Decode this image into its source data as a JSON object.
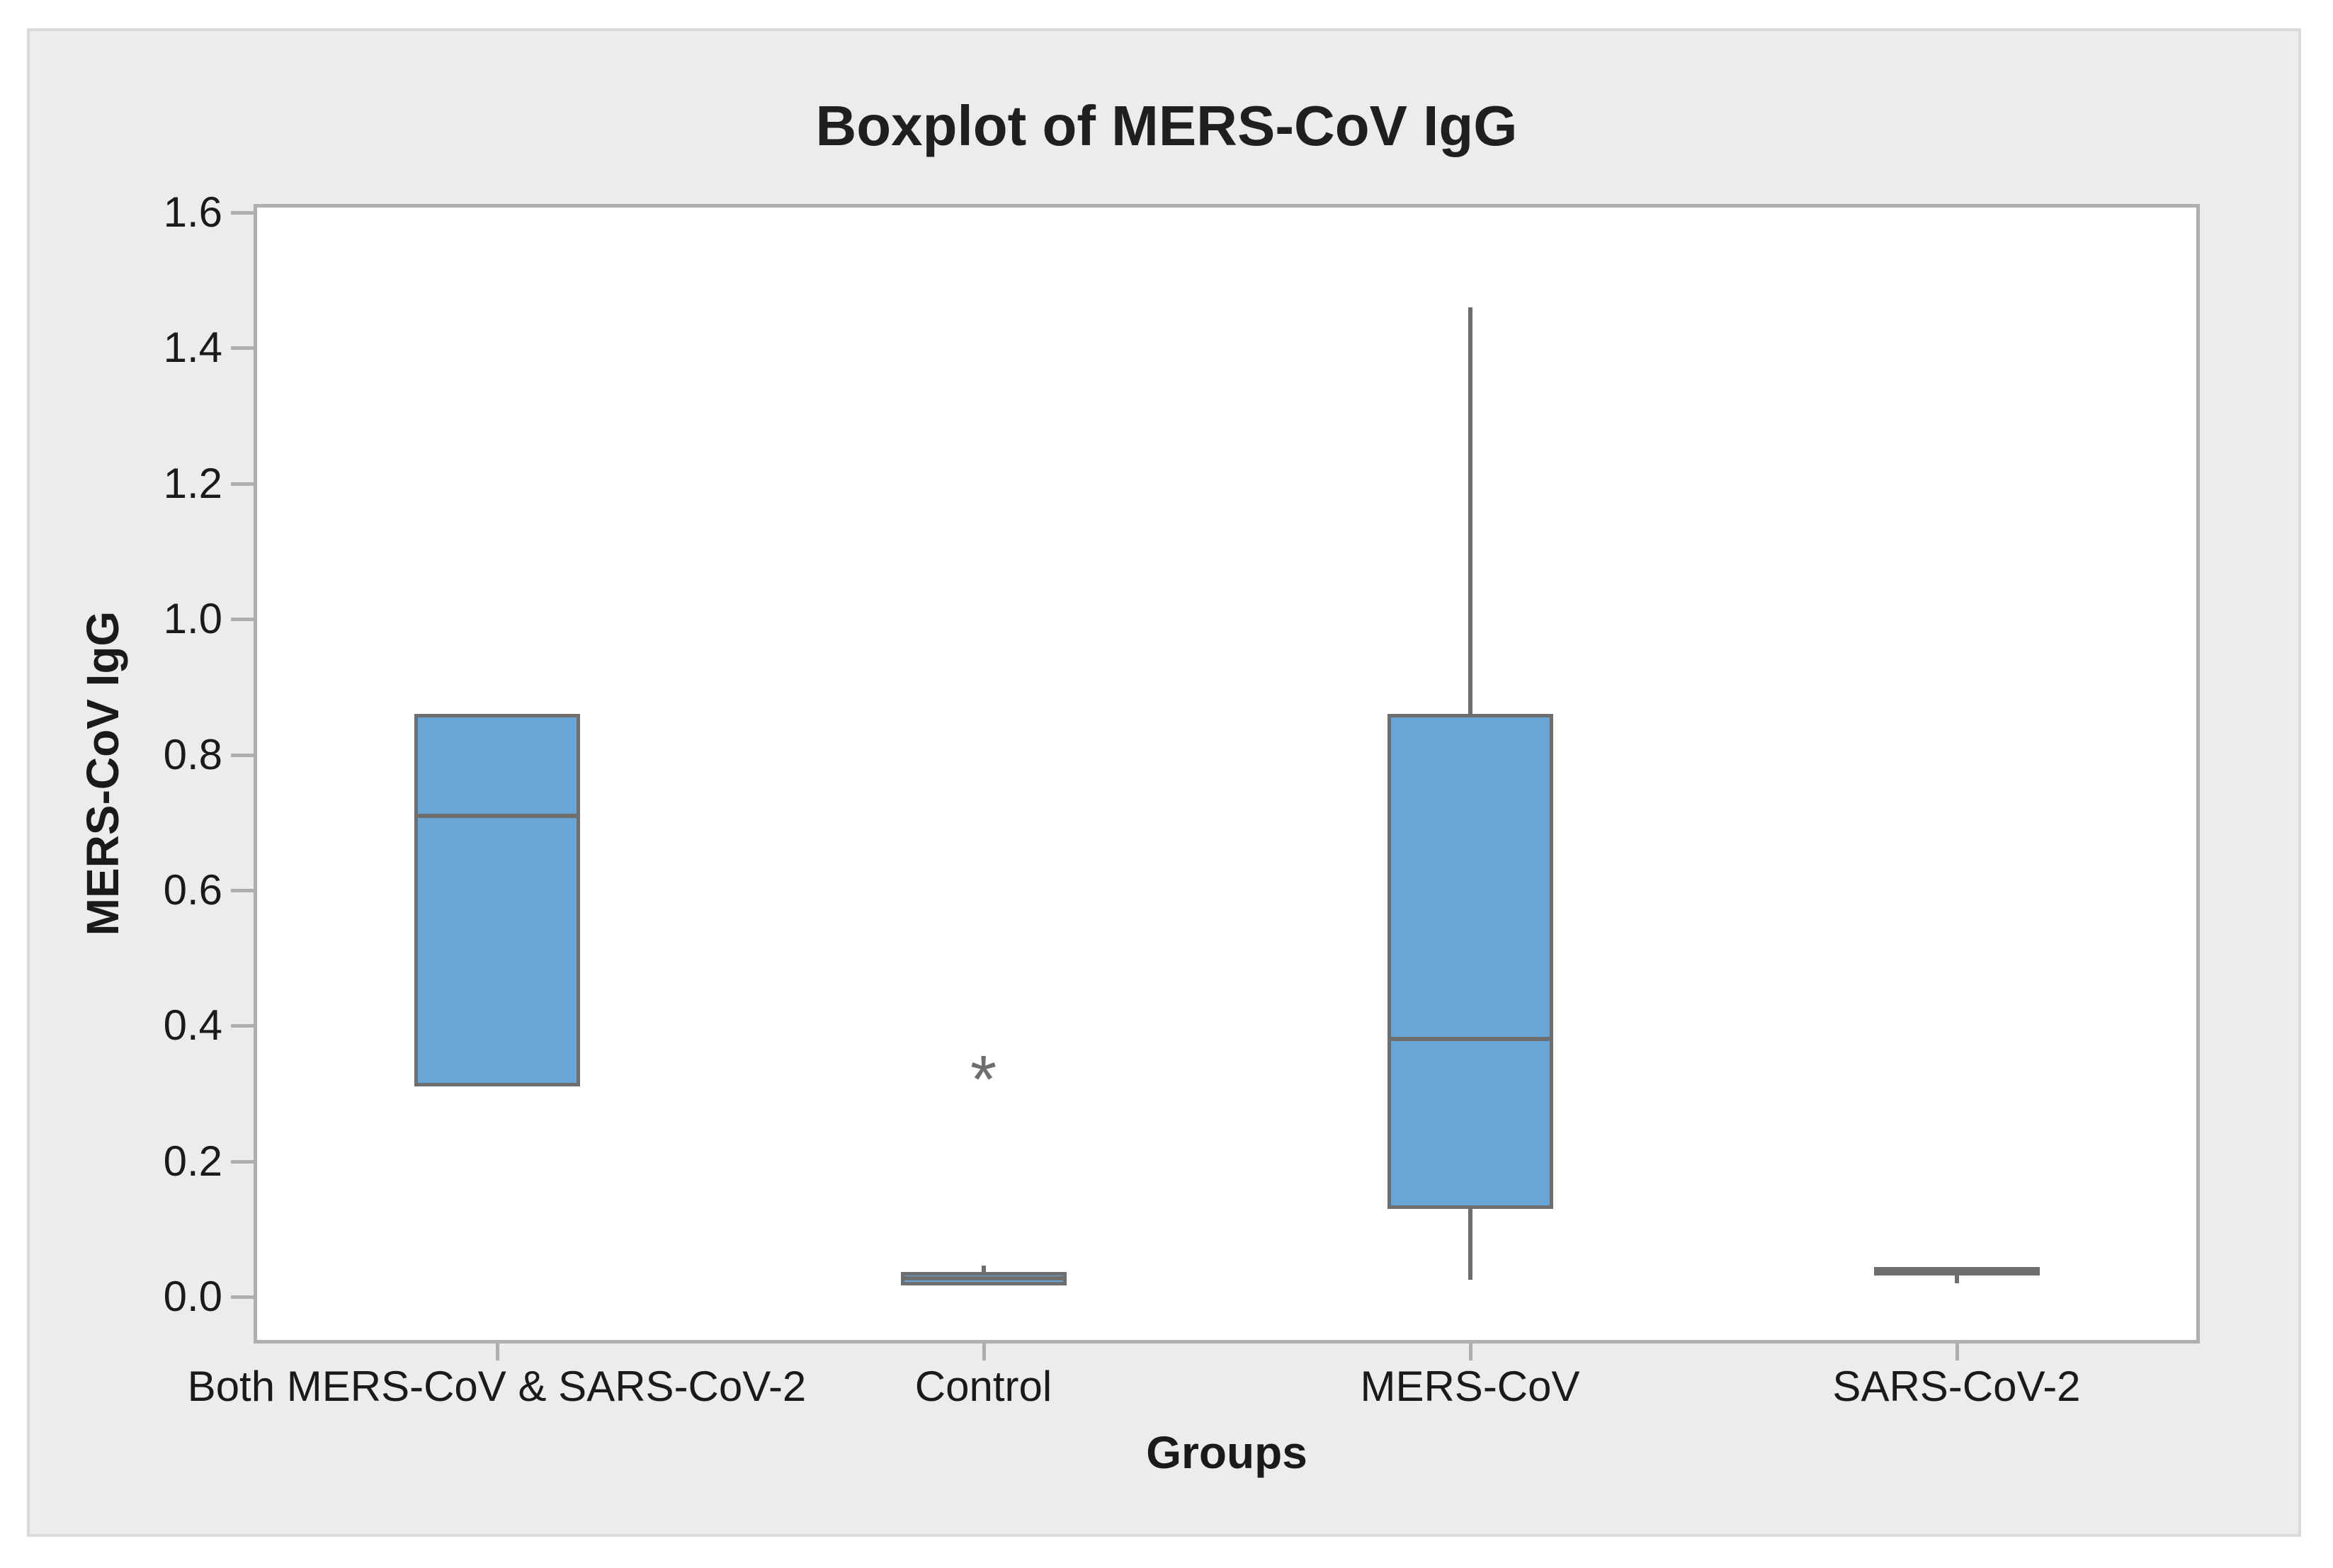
{
  "figure": {
    "title": "Boxplot of MERS-CoV IgG",
    "background_color": "#ECECEC",
    "panel_border_color": "#D9D9D9",
    "plot_background_color": "#FFFFFF",
    "plot_border_color": "#AFAFAF"
  },
  "chart_data": {
    "type": "box",
    "title": "Boxplot of MERS-CoV IgG",
    "xlabel": "Groups",
    "ylabel": "MERS-CoV IgG",
    "ylim": [
      0,
      1.6
    ],
    "ytick_step": 0.2,
    "ytick_labels": [
      "1.6",
      "1.4",
      "1.2",
      "1.0",
      "0.8",
      "0.6",
      "0.4",
      "0.2",
      "0.0"
    ],
    "grid": "off",
    "legend": "none",
    "categories": [
      "Both MERS-CoV & SARS-CoV-2",
      "Control",
      "MERS-CoV",
      "SARS-CoV-2"
    ],
    "series": [
      {
        "name": "Both MERS-CoV & SARS-CoV-2",
        "whisker_low": 0.31,
        "q1": 0.31,
        "median": 0.71,
        "q3": 0.86,
        "whisker_high": 0.86,
        "outliers": []
      },
      {
        "name": "Control",
        "whisker_low": 0.017,
        "q1": 0.017,
        "median": 0.027,
        "q3": 0.037,
        "whisker_high": 0.046,
        "outliers": [
          0.34
        ]
      },
      {
        "name": "MERS-CoV",
        "whisker_low": 0.025,
        "q1": 0.13,
        "median": 0.38,
        "q3": 0.86,
        "whisker_high": 1.46,
        "outliers": []
      },
      {
        "name": "SARS-CoV-2",
        "whisker_low": 0.02,
        "q1": 0.031,
        "median": 0.037,
        "q3": 0.044,
        "whisker_high": 0.044,
        "outliers": []
      }
    ],
    "box_fill_color": "#68A6D8",
    "box_stroke_color": "#6E6E6E",
    "outlier_marker": "*",
    "axis_tick_color": "#AFAFAF",
    "text_color": "#1A1A1A"
  }
}
